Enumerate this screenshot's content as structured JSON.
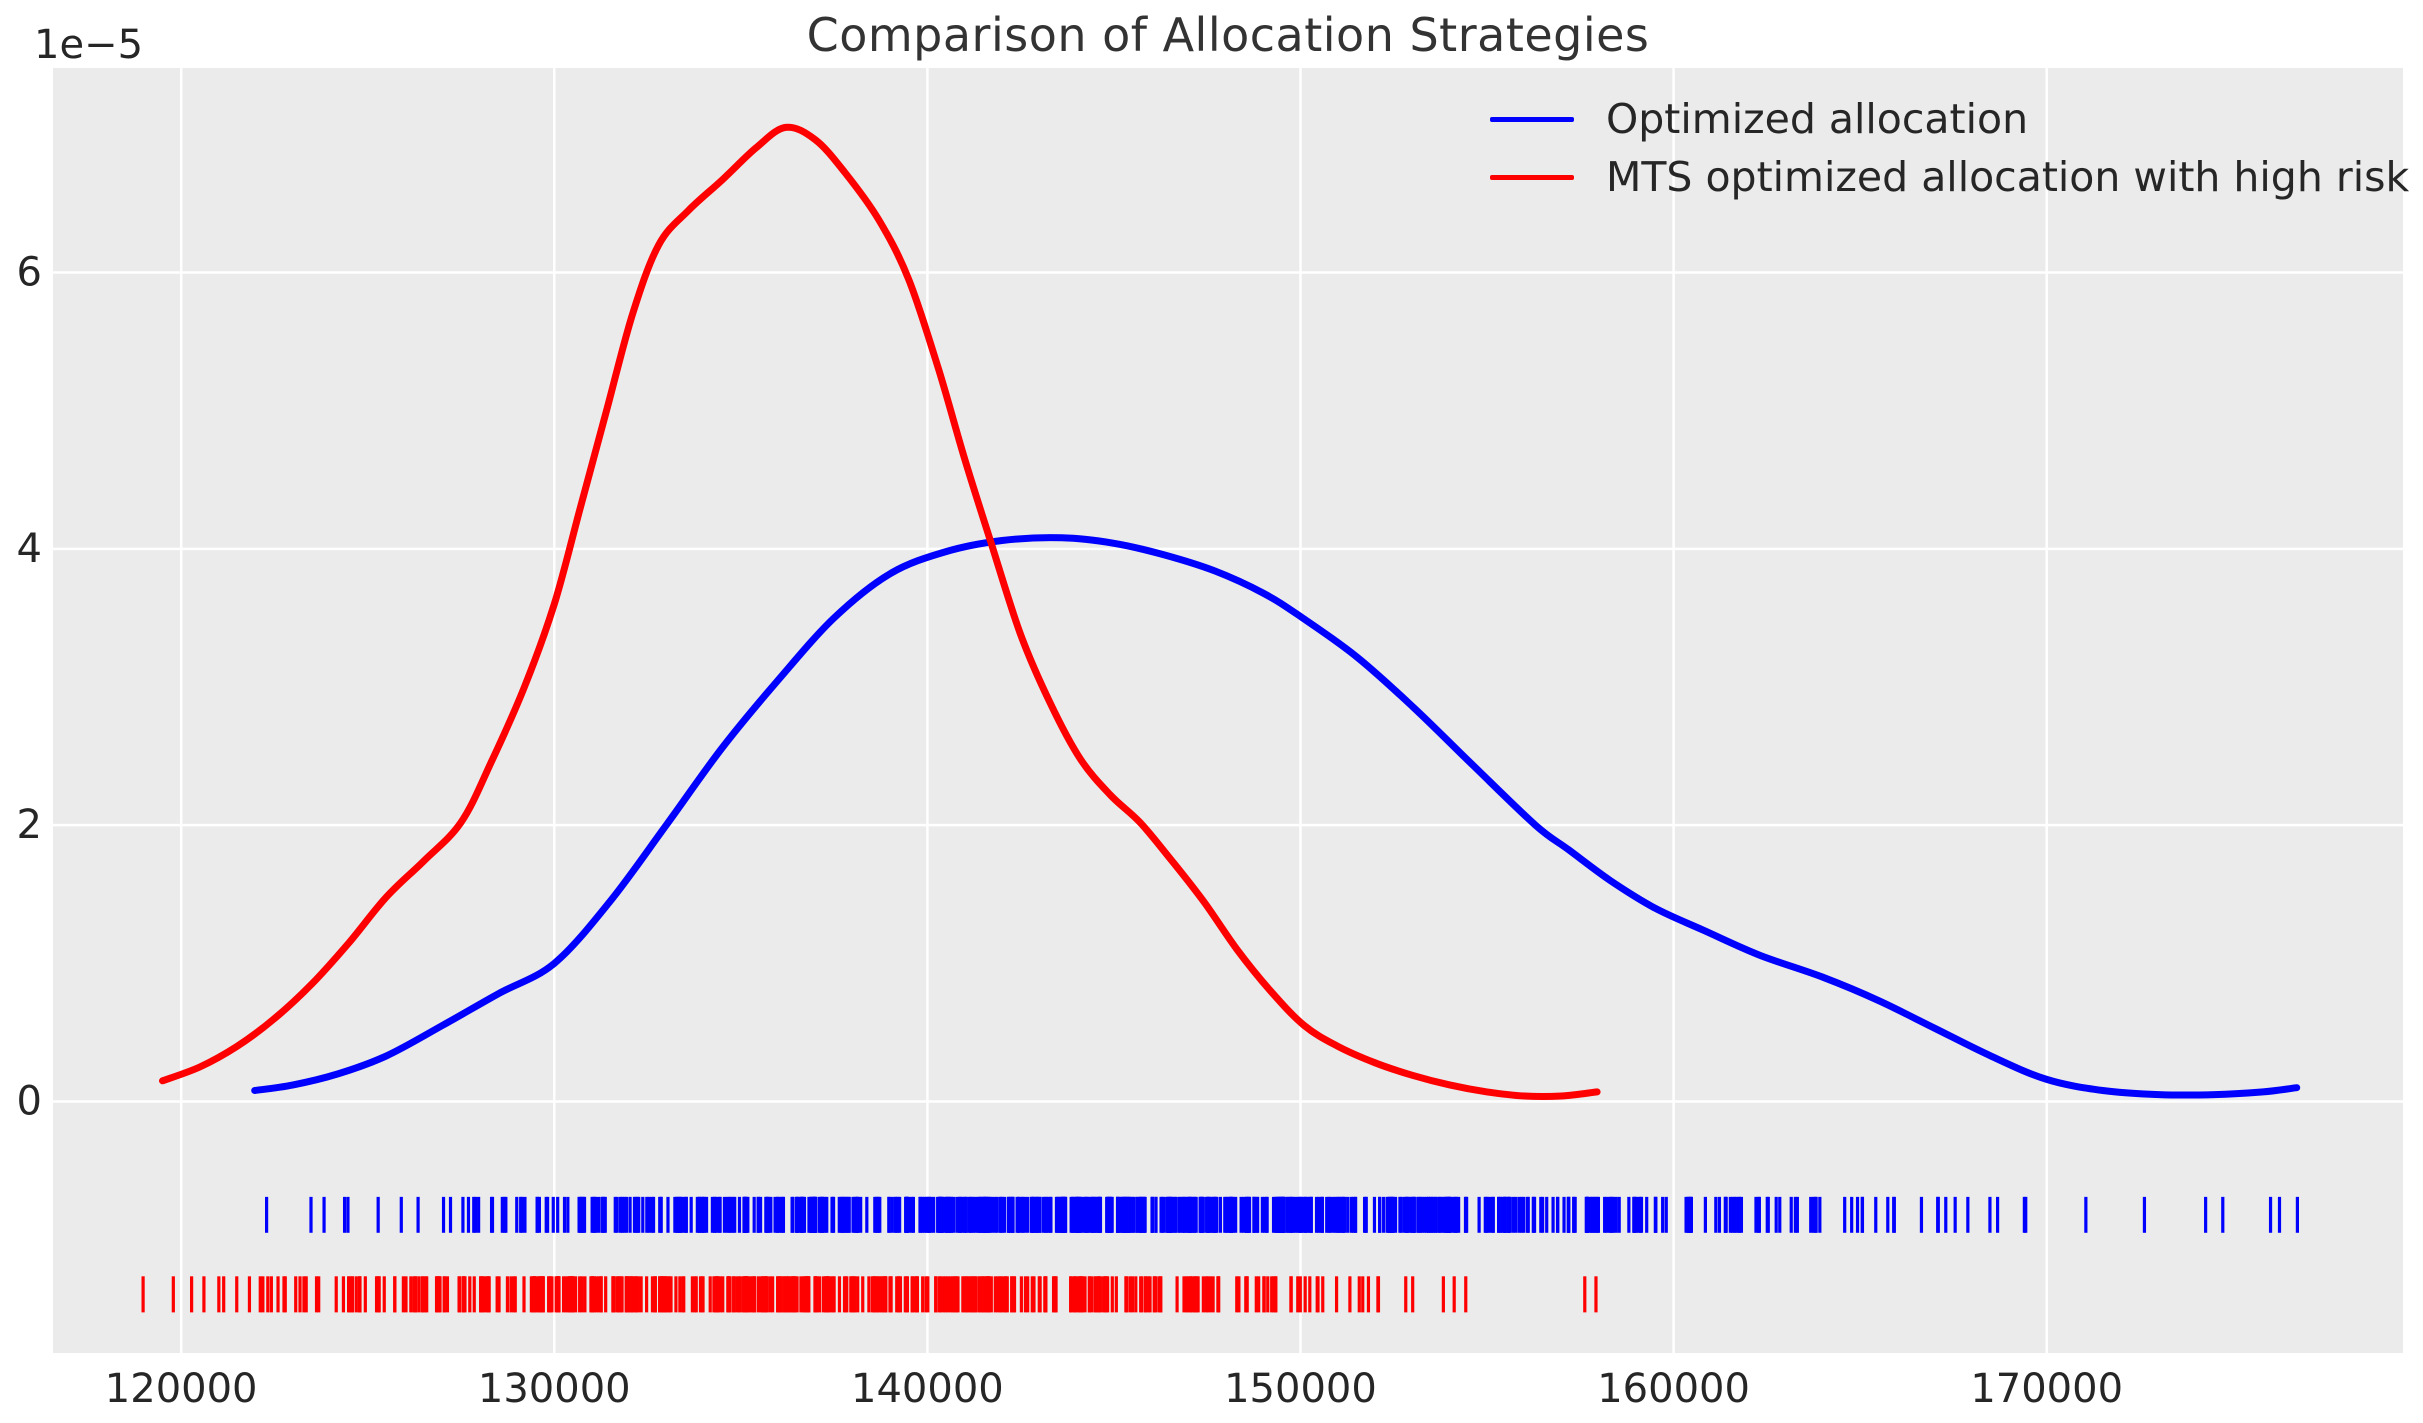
{
  "figure": {
    "title": "Comparison of Allocation Strategies",
    "offset_text": "1e−5",
    "background_color": "#ffffff",
    "plot_background_color": "#ebebeb",
    "grid_color": "#ffffff",
    "tick_text_color": "#262626",
    "title_color": "#333333"
  },
  "legend": {
    "position": "upper right",
    "items": [
      {
        "label": "Optimized allocation",
        "color": "#0000ff"
      },
      {
        "label": "MTS optimized allocation with high risk",
        "color": "#ff0000"
      }
    ]
  },
  "chart_data": {
    "type": "line",
    "subtype": "kde-density-with-rug",
    "title": "Comparison of Allocation Strategies",
    "xlabel": "",
    "ylabel": "",
    "y_offset_multiplier": "1e-5",
    "grid": true,
    "legend_position": "upper right",
    "xlim": [
      116565,
      179550
    ],
    "ylim_e5": [
      -1.82,
      7.48
    ],
    "x_ticks": [
      120000,
      130000,
      140000,
      150000,
      160000,
      170000
    ],
    "x_tick_labels": [
      "120000",
      "130000",
      "140000",
      "150000",
      "160000",
      "170000"
    ],
    "y_ticks_e5": [
      0,
      2,
      4,
      6
    ],
    "y_tick_labels": [
      "0",
      "2",
      "4",
      "6"
    ],
    "series": [
      {
        "name": "Optimized allocation",
        "color": "#0000ff",
        "peak": {
          "x": 143600,
          "y_e5": 4.08
        },
        "x_start": 121970,
        "x_end": 176700,
        "points_e5": [
          [
            121970,
            0.08
          ],
          [
            123000,
            0.12
          ],
          [
            124200,
            0.2
          ],
          [
            125500,
            0.33
          ],
          [
            127000,
            0.55
          ],
          [
            128500,
            0.78
          ],
          [
            130000,
            1.0
          ],
          [
            131500,
            1.45
          ],
          [
            133000,
            2.0
          ],
          [
            134500,
            2.56
          ],
          [
            136000,
            3.05
          ],
          [
            137500,
            3.5
          ],
          [
            139000,
            3.82
          ],
          [
            140500,
            3.98
          ],
          [
            142000,
            4.06
          ],
          [
            143600,
            4.08
          ],
          [
            145000,
            4.04
          ],
          [
            146300,
            3.96
          ],
          [
            147700,
            3.84
          ],
          [
            149000,
            3.68
          ],
          [
            150000,
            3.51
          ],
          [
            151500,
            3.22
          ],
          [
            153000,
            2.86
          ],
          [
            154600,
            2.44
          ],
          [
            156300,
            2.0
          ],
          [
            157200,
            1.82
          ],
          [
            158300,
            1.6
          ],
          [
            159500,
            1.4
          ],
          [
            160800,
            1.24
          ],
          [
            162300,
            1.06
          ],
          [
            164000,
            0.9
          ],
          [
            165500,
            0.73
          ],
          [
            167000,
            0.53
          ],
          [
            168500,
            0.33
          ],
          [
            170000,
            0.16
          ],
          [
            171500,
            0.08
          ],
          [
            173000,
            0.05
          ],
          [
            174500,
            0.05
          ],
          [
            175800,
            0.07
          ],
          [
            176700,
            0.1
          ]
        ]
      },
      {
        "name": "MTS optimized allocation with high risk",
        "color": "#ff0000",
        "peak": {
          "x": 136200,
          "y_e5": 7.05
        },
        "x_start": 119500,
        "x_end": 157950,
        "points_e5": [
          [
            119500,
            0.15
          ],
          [
            120500,
            0.25
          ],
          [
            121500,
            0.4
          ],
          [
            122500,
            0.6
          ],
          [
            123500,
            0.85
          ],
          [
            124500,
            1.15
          ],
          [
            125500,
            1.48
          ],
          [
            126500,
            1.74
          ],
          [
            127500,
            2.02
          ],
          [
            128300,
            2.45
          ],
          [
            129200,
            3.0
          ],
          [
            130000,
            3.6
          ],
          [
            130700,
            4.3
          ],
          [
            131400,
            5.0
          ],
          [
            132100,
            5.7
          ],
          [
            132800,
            6.2
          ],
          [
            133600,
            6.45
          ],
          [
            134500,
            6.67
          ],
          [
            135400,
            6.9
          ],
          [
            136200,
            7.05
          ],
          [
            137000,
            6.96
          ],
          [
            137800,
            6.72
          ],
          [
            138700,
            6.38
          ],
          [
            139500,
            5.95
          ],
          [
            140300,
            5.3
          ],
          [
            141000,
            4.65
          ],
          [
            141700,
            4.05
          ],
          [
            142500,
            3.38
          ],
          [
            143300,
            2.88
          ],
          [
            144100,
            2.48
          ],
          [
            144900,
            2.22
          ],
          [
            145700,
            2.02
          ],
          [
            146500,
            1.76
          ],
          [
            147400,
            1.45
          ],
          [
            148300,
            1.1
          ],
          [
            149200,
            0.8
          ],
          [
            150100,
            0.55
          ],
          [
            151000,
            0.4
          ],
          [
            152000,
            0.28
          ],
          [
            153000,
            0.19
          ],
          [
            154000,
            0.12
          ],
          [
            155000,
            0.07
          ],
          [
            156000,
            0.04
          ],
          [
            157000,
            0.04
          ],
          [
            157950,
            0.07
          ]
        ]
      }
    ],
    "rugs": [
      {
        "name": "Optimized allocation samples",
        "color": "#0000ff",
        "band_e5": [
          -0.69,
          -0.95
        ],
        "seed": 42,
        "singles": [
          122290,
          123480,
          123830,
          124380,
          124470,
          125280,
          125900,
          126350,
          171050,
          172620,
          174260,
          174720,
          176000,
          176240,
          176720
        ],
        "segments": [
          {
            "from": 126700,
            "to": 128600,
            "count": 9
          },
          {
            "from": 128600,
            "to": 130600,
            "count": 16
          },
          {
            "from": 130600,
            "to": 133000,
            "count": 34
          },
          {
            "from": 133000,
            "to": 136000,
            "count": 52
          },
          {
            "from": 136000,
            "to": 139000,
            "count": 62
          },
          {
            "from": 139000,
            "to": 142000,
            "count": 75
          },
          {
            "from": 142000,
            "to": 145000,
            "count": 85
          },
          {
            "from": 145000,
            "to": 148000,
            "count": 80
          },
          {
            "from": 148000,
            "to": 151000,
            "count": 72
          },
          {
            "from": 151000,
            "to": 154000,
            "count": 62
          },
          {
            "from": 154000,
            "to": 156500,
            "count": 42
          },
          {
            "from": 156500,
            "to": 158500,
            "count": 30
          },
          {
            "from": 158500,
            "to": 160500,
            "count": 22
          },
          {
            "from": 160500,
            "to": 162500,
            "count": 16
          },
          {
            "from": 162500,
            "to": 164500,
            "count": 12
          },
          {
            "from": 164500,
            "to": 166500,
            "count": 9
          },
          {
            "from": 166500,
            "to": 168200,
            "count": 6
          },
          {
            "from": 168200,
            "to": 169600,
            "count": 4
          }
        ]
      },
      {
        "name": "MTS optimized allocation samples",
        "color": "#ff0000",
        "band_e5": [
          -1.265,
          -1.526
        ],
        "seed": 7,
        "singles": [
          118980,
          119790,
          120280,
          120610,
          121010,
          121140,
          121490,
          121830,
          122120,
          122190,
          153830,
          154120,
          154430,
          157620,
          157920
        ],
        "segments": [
          {
            "from": 122300,
            "to": 124200,
            "count": 12
          },
          {
            "from": 124200,
            "to": 126200,
            "count": 20
          },
          {
            "from": 126200,
            "to": 128200,
            "count": 30
          },
          {
            "from": 128200,
            "to": 130500,
            "count": 48
          },
          {
            "from": 130500,
            "to": 133500,
            "count": 62
          },
          {
            "from": 133500,
            "to": 136500,
            "count": 66
          },
          {
            "from": 136500,
            "to": 139500,
            "count": 62
          },
          {
            "from": 139500,
            "to": 142500,
            "count": 56
          },
          {
            "from": 142500,
            "to": 145500,
            "count": 46
          },
          {
            "from": 145500,
            "to": 147800,
            "count": 30
          },
          {
            "from": 147800,
            "to": 149800,
            "count": 18
          },
          {
            "from": 149800,
            "to": 151800,
            "count": 11
          },
          {
            "from": 151800,
            "to": 153200,
            "count": 5
          }
        ]
      }
    ]
  }
}
